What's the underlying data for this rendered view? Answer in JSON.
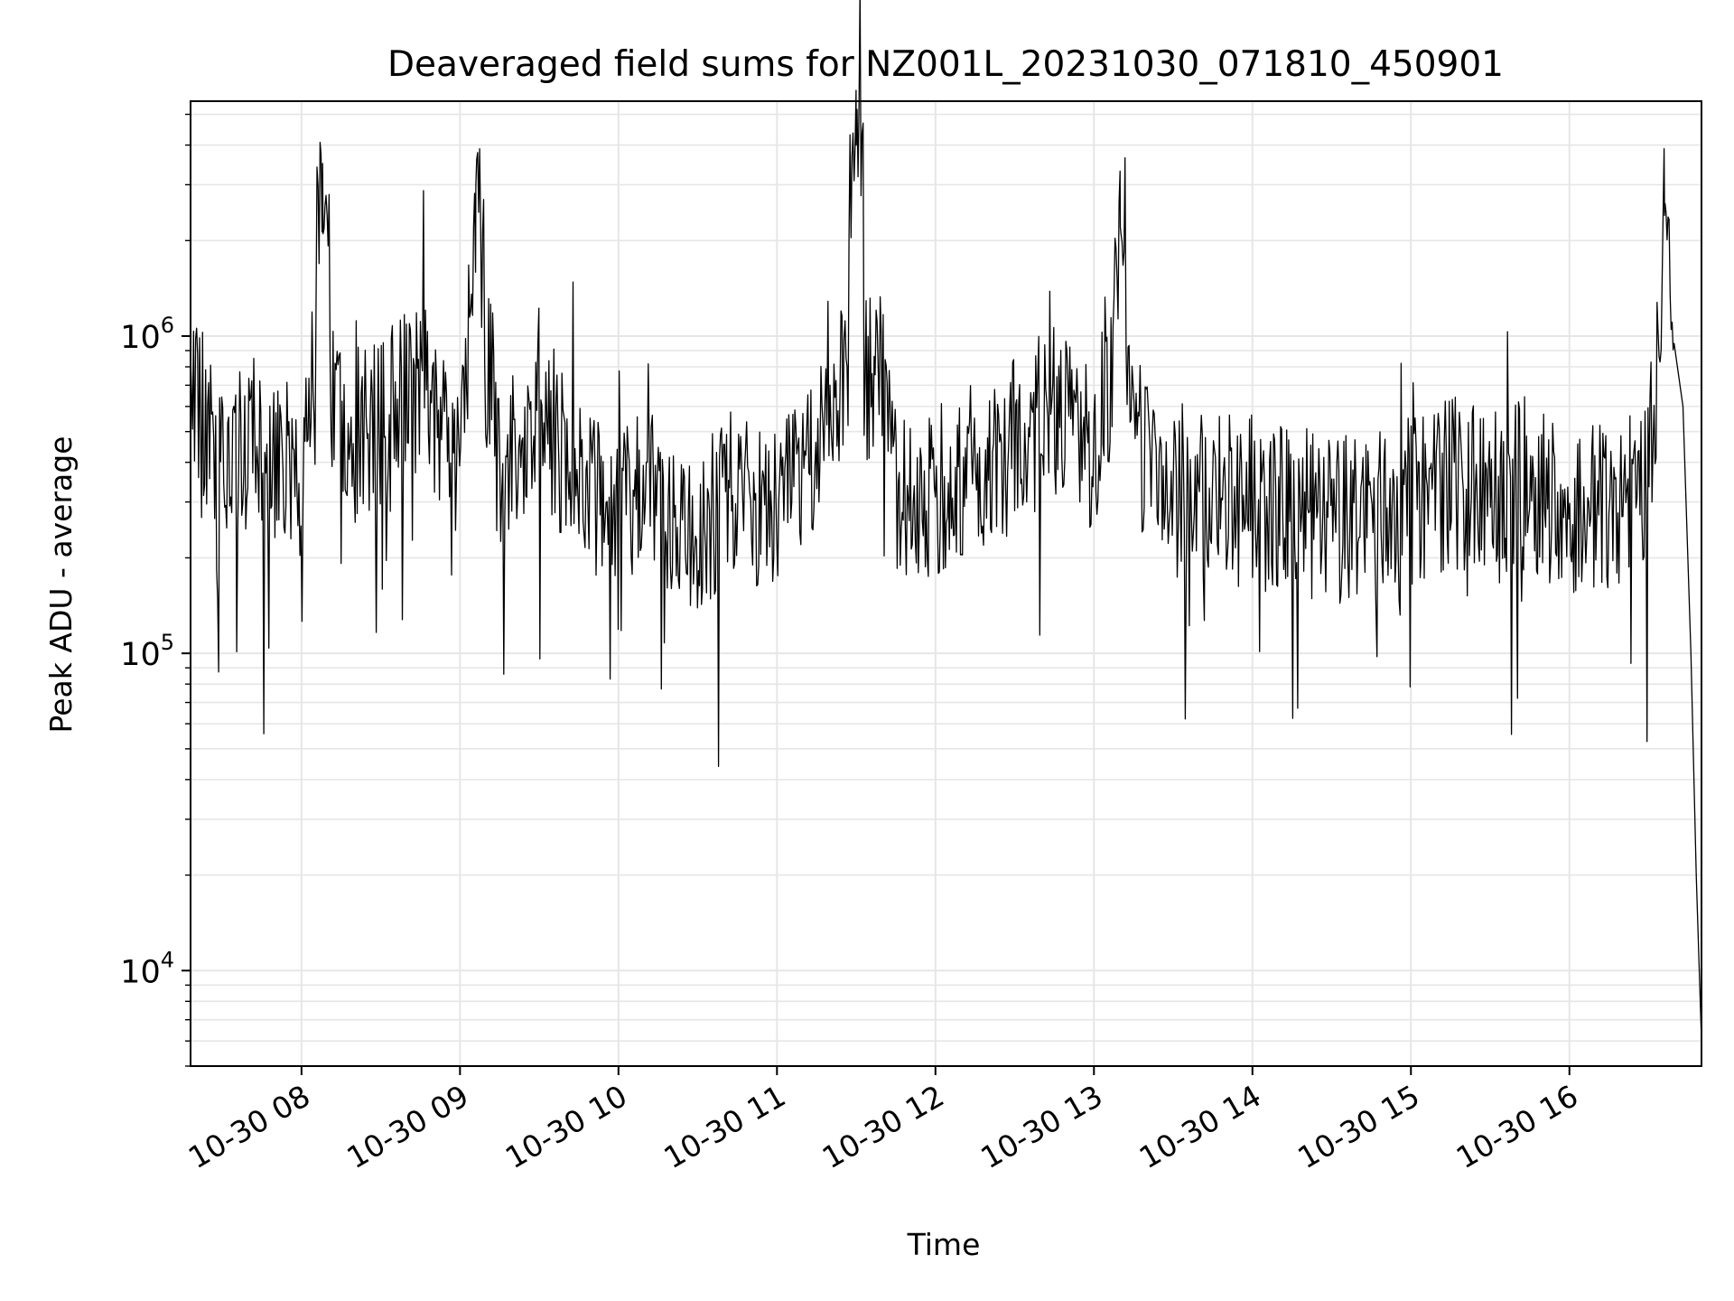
{
  "chart_data": {
    "type": "line",
    "title": "Deaveraged field sums for NZ001L_20231030_071810_450901",
    "xlabel": "Time",
    "ylabel": "Peak ADU - average",
    "xlim": [
      "2023-10-30 07:18",
      "2023-10-30 16:50"
    ],
    "ylim": [
      5000,
      5500000
    ],
    "yscale": "log",
    "y_tick_labels": [
      {
        "value": 10000,
        "base": "10",
        "exp": "4"
      },
      {
        "value": 100000,
        "base": "10",
        "exp": "5"
      },
      {
        "value": 1000000,
        "base": "10",
        "exp": "6"
      }
    ],
    "x_ticks": [
      {
        "t": "2023-10-30 08:00",
        "label": "10-30 08"
      },
      {
        "t": "2023-10-30 09:00",
        "label": "10-30 09"
      },
      {
        "t": "2023-10-30 10:00",
        "label": "10-30 10"
      },
      {
        "t": "2023-10-30 11:00",
        "label": "10-30 11"
      },
      {
        "t": "2023-10-30 12:00",
        "label": "10-30 12"
      },
      {
        "t": "2023-10-30 13:00",
        "label": "10-30 13"
      },
      {
        "t": "2023-10-30 14:00",
        "label": "10-30 14"
      },
      {
        "t": "2023-10-30 15:00",
        "label": "10-30 15"
      },
      {
        "t": "2023-10-30 16:00",
        "label": "10-30 16"
      }
    ],
    "grid": true,
    "line_color": "#000000",
    "grid_color": "#e6e6e6",
    "series": [
      {
        "x": [
          "2023-10-30 07:18",
          "2023-10-30 07:30",
          "2023-10-30 07:45",
          "2023-10-30 08:00",
          "2023-10-30 08:08",
          "2023-10-30 08:15",
          "2023-10-30 08:30",
          "2023-10-30 08:45",
          "2023-10-30 09:00",
          "2023-10-30 09:06",
          "2023-10-30 09:15",
          "2023-10-30 09:30",
          "2023-10-30 09:45",
          "2023-10-30 10:00",
          "2023-10-30 10:15",
          "2023-10-30 10:30",
          "2023-10-30 10:45",
          "2023-10-30 11:00",
          "2023-10-30 11:15",
          "2023-10-30 11:30",
          "2023-10-30 11:45",
          "2023-10-30 12:00",
          "2023-10-30 12:15",
          "2023-10-30 12:30",
          "2023-10-30 12:45",
          "2023-10-30 13:00",
          "2023-10-30 13:10",
          "2023-10-30 13:15",
          "2023-10-30 13:30",
          "2023-10-30 13:45",
          "2023-10-30 14:00",
          "2023-10-30 14:15",
          "2023-10-30 14:30",
          "2023-10-30 14:45",
          "2023-10-30 15:00",
          "2023-10-30 15:15",
          "2023-10-30 15:30",
          "2023-10-30 15:45",
          "2023-10-30 16:00",
          "2023-10-30 16:15",
          "2023-10-30 16:30",
          "2023-10-30 16:36",
          "2023-10-30 16:40",
          "2023-10-30 16:43",
          "2023-10-30 16:46",
          "2023-10-30 16:48",
          "2023-10-30 16:50"
        ],
        "y": [
          700000,
          400000,
          450000,
          350000,
          3500000,
          450000,
          550000,
          700000,
          400000,
          3000000,
          350000,
          600000,
          350000,
          300000,
          300000,
          250000,
          320000,
          280000,
          380000,
          4000000,
          300000,
          320000,
          380000,
          450000,
          600000,
          400000,
          2200000,
          450000,
          350000,
          300000,
          300000,
          280000,
          260000,
          280000,
          300000,
          350000,
          300000,
          350000,
          280000,
          300000,
          350000,
          2400000,
          700000,
          600000,
          100000,
          20000,
          6000
        ]
      }
    ]
  }
}
